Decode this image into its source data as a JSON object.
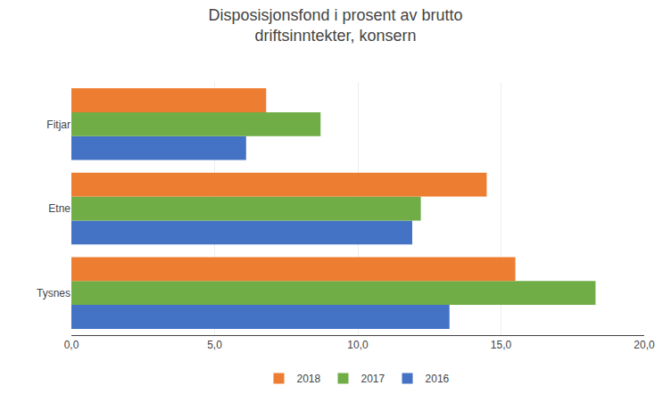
{
  "chart_data": {
    "type": "bar",
    "orientation": "horizontal",
    "title": "Disposisjonsfond i prosent av brutto\ndriftsinntekter, konsern",
    "categories": [
      "Tysnes",
      "Etne",
      "Fitjar"
    ],
    "series": [
      {
        "name": "2018",
        "color": "#ED7D31",
        "values": [
          15.5,
          14.5,
          6.8
        ]
      },
      {
        "name": "2017",
        "color": "#70AD47",
        "values": [
          18.3,
          12.2,
          8.7
        ]
      },
      {
        "name": "2016",
        "color": "#4472C4",
        "values": [
          13.2,
          11.9,
          6.1
        ]
      }
    ],
    "xlim": [
      0,
      20
    ],
    "xticks": [
      {
        "value": 0,
        "label": "0,0"
      },
      {
        "value": 5,
        "label": "5,0"
      },
      {
        "value": 10,
        "label": "10,0"
      },
      {
        "value": 15,
        "label": "15,0"
      },
      {
        "value": 20,
        "label": "20,0"
      }
    ],
    "grid": true,
    "legend": "bottom"
  }
}
